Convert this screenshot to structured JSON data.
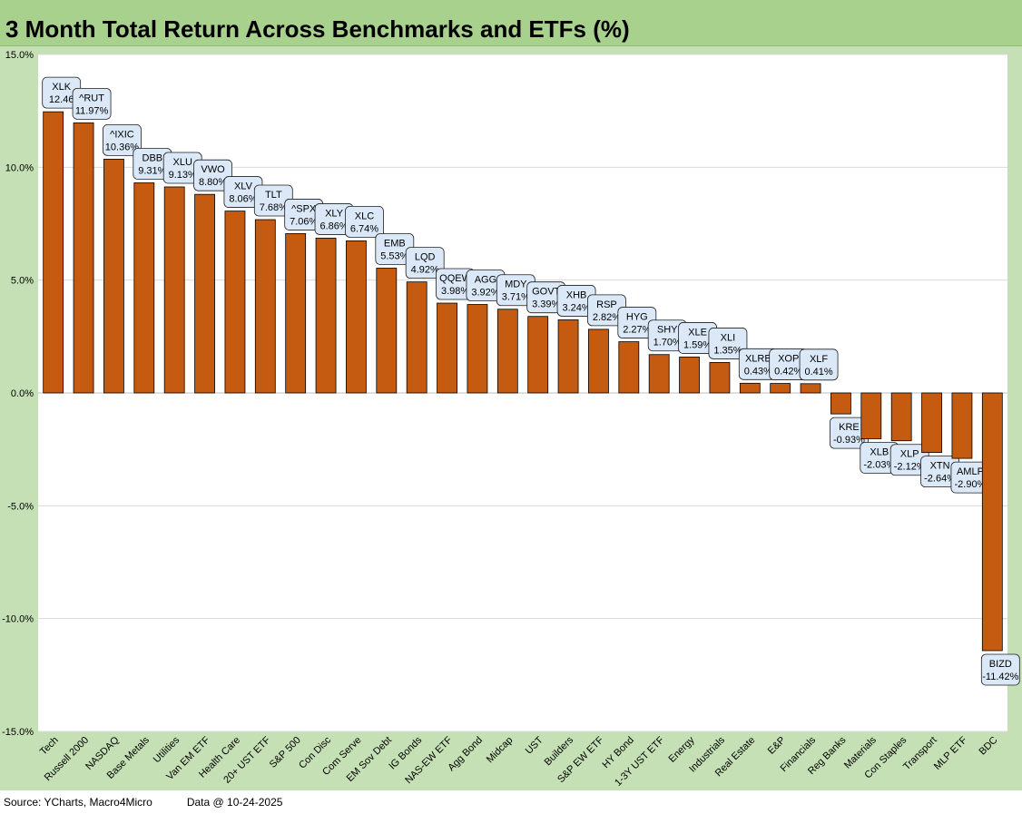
{
  "chart_data": {
    "type": "bar",
    "title": "3 Month Total Return Across Benchmarks and ETFs (%)",
    "ylim": [
      -15,
      15
    ],
    "yticks": [
      "15.0%",
      "10.0%",
      "5.0%",
      "0.0%",
      "-5.0%",
      "-10.0%",
      "-15.0%"
    ],
    "ytick_values": [
      15,
      10,
      5,
      0,
      -5,
      -10,
      -15
    ],
    "bar_color": "#c55a11",
    "label_fill": "#dae8f7",
    "bars": [
      {
        "category": "Tech",
        "ticker": "XLK",
        "value": 12.46,
        "label": "12.46"
      },
      {
        "category": "Russell 2000",
        "ticker": "^RUT",
        "value": 11.97,
        "label": "11.97%"
      },
      {
        "category": "NASDAQ",
        "ticker": "^IXIC",
        "value": 10.36,
        "label": "10.36%"
      },
      {
        "category": "Base Metals",
        "ticker": "DBB",
        "value": 9.31,
        "label": "9.31%"
      },
      {
        "category": "Utilities",
        "ticker": "XLU",
        "value": 9.13,
        "label": "9.13%"
      },
      {
        "category": "Van EM ETF",
        "ticker": "VWO",
        "value": 8.8,
        "label": "8.80%"
      },
      {
        "category": "Health Care",
        "ticker": "XLV",
        "value": 8.06,
        "label": "8.06%"
      },
      {
        "category": "20+ UST ETF",
        "ticker": "TLT",
        "value": 7.68,
        "label": "7.68%"
      },
      {
        "category": "S&P 500",
        "ticker": "^SPX",
        "value": 7.06,
        "label": "7.06%"
      },
      {
        "category": "Con Disc",
        "ticker": "XLY",
        "value": 6.86,
        "label": "6.86%"
      },
      {
        "category": "Com Serve",
        "ticker": "XLC",
        "value": 6.74,
        "label": "6.74%"
      },
      {
        "category": "EM Sov Debt",
        "ticker": "EMB",
        "value": 5.53,
        "label": "5.53%"
      },
      {
        "category": "IG Bonds",
        "ticker": "LQD",
        "value": 4.92,
        "label": "4.92%"
      },
      {
        "category": "NAS-EW ETF",
        "ticker": "QQEW",
        "value": 3.98,
        "label": "3.98%"
      },
      {
        "category": "Agg Bond",
        "ticker": "AGG",
        "value": 3.92,
        "label": "3.92%"
      },
      {
        "category": "Midcap",
        "ticker": "MDY",
        "value": 3.71,
        "label": "3.71%"
      },
      {
        "category": "UST",
        "ticker": "GOVT",
        "value": 3.39,
        "label": "3.39%"
      },
      {
        "category": "Builders",
        "ticker": "XHB",
        "value": 3.24,
        "label": "3.24%"
      },
      {
        "category": "S&P EW ETF",
        "ticker": "RSP",
        "value": 2.82,
        "label": "2.82%"
      },
      {
        "category": "HY Bond",
        "ticker": "HYG",
        "value": 2.27,
        "label": "2.27%"
      },
      {
        "category": "1-3Y UST ETF",
        "ticker": "SHY",
        "value": 1.7,
        "label": "1.70%"
      },
      {
        "category": "Energy",
        "ticker": "XLE",
        "value": 1.59,
        "label": "1.59%"
      },
      {
        "category": "Industrials",
        "ticker": "XLI",
        "value": 1.35,
        "label": "1.35%"
      },
      {
        "category": "Real Estate",
        "ticker": "XLRE",
        "value": 0.43,
        "label": "0.43%"
      },
      {
        "category": "E&P",
        "ticker": "XOP",
        "value": 0.42,
        "label": "0.42%"
      },
      {
        "category": "Financials",
        "ticker": "XLF",
        "value": 0.41,
        "label": "0.41%"
      },
      {
        "category": "Reg Banks",
        "ticker": "KRE",
        "value": -0.93,
        "label": "-0.93%"
      },
      {
        "category": "Materials",
        "ticker": "XLB",
        "value": -2.03,
        "label": "-2.03%"
      },
      {
        "category": "Con Staples",
        "ticker": "XLP",
        "value": -2.12,
        "label": "-2.12%"
      },
      {
        "category": "Transport",
        "ticker": "XTN",
        "value": -2.64,
        "label": "-2.64%"
      },
      {
        "category": "MLP ETF",
        "ticker": "AMLP",
        "value": -2.9,
        "label": "-2.90%"
      },
      {
        "category": "BDC",
        "ticker": "BIZD",
        "value": -11.42,
        "label": "-11.42%"
      }
    ]
  },
  "footer": {
    "source": "Source: YCharts, Macro4Micro",
    "data_date": "Data @ 10-24-2025"
  }
}
